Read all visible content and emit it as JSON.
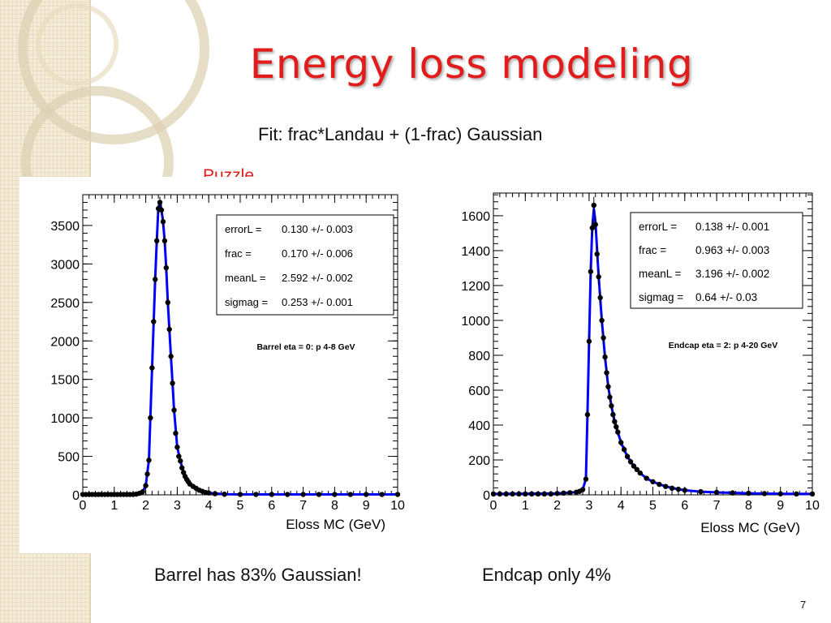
{
  "slide": {
    "title": "Energy loss modeling",
    "subtitle": "Fit: frac*Landau + (1-frac) Gaussian",
    "puzzle_label": "Puzzle",
    "caption_left": "Barrel has 83%  Gaussian!",
    "caption_right": "Endcap only 4%",
    "page_number": "7",
    "colors": {
      "title": "#e21b1b",
      "fit_line": "#0000ff",
      "points": "#000000"
    }
  },
  "chart_data": [
    {
      "type": "scatter",
      "xlabel": "Eloss MC (GeV)",
      "ylabel": "",
      "xlim": [
        0,
        10
      ],
      "ylim": [
        0,
        3900
      ],
      "xticks": [
        0,
        1,
        2,
        3,
        4,
        5,
        6,
        7,
        8,
        9,
        10
      ],
      "yticks": [
        0,
        500,
        1000,
        1500,
        2000,
        2500,
        3000,
        3500
      ],
      "grid": false,
      "legend": "none",
      "stats": [
        {
          "label": "errorL =",
          "value": "0.130 +/- 0.003"
        },
        {
          "label": "frac =",
          "value": "0.170 +/- 0.006"
        },
        {
          "label": "meanL =",
          "value": "2.592 +/- 0.002"
        },
        {
          "label": "sigmag =",
          "value": "0.253 +/- 0.001"
        }
      ],
      "annotation": "Barrel eta = 0: p 4-8 GeV",
      "series": [
        {
          "kind": "points",
          "x": [
            0.0,
            0.1,
            0.2,
            0.3,
            0.4,
            0.5,
            0.6,
            0.7,
            0.8,
            0.9,
            1.0,
            1.1,
            1.2,
            1.3,
            1.4,
            1.5,
            1.6,
            1.7,
            1.8,
            1.9,
            2.0,
            2.05,
            2.1,
            2.15,
            2.2,
            2.25,
            2.3,
            2.35,
            2.4,
            2.45,
            2.5,
            2.55,
            2.6,
            2.65,
            2.7,
            2.75,
            2.8,
            2.85,
            2.9,
            2.95,
            3.0,
            3.05,
            3.1,
            3.15,
            3.2,
            3.25,
            3.3,
            3.35,
            3.4,
            3.5,
            3.6,
            3.7,
            3.8,
            3.9,
            4.0,
            4.2,
            4.5,
            5.0,
            5.5,
            6.0,
            6.5,
            7.0,
            7.5,
            8.0,
            8.5,
            9.0,
            9.5,
            10.0
          ],
          "y": [
            5,
            5,
            5,
            5,
            5,
            5,
            5,
            5,
            5,
            5,
            5,
            5,
            5,
            5,
            5,
            5,
            5,
            10,
            20,
            40,
            120,
            270,
            450,
            1000,
            1650,
            2250,
            2800,
            3300,
            3720,
            3800,
            3700,
            3550,
            3300,
            2950,
            2500,
            2150,
            1800,
            1450,
            1100,
            800,
            620,
            500,
            440,
            350,
            290,
            240,
            200,
            170,
            140,
            110,
            85,
            60,
            45,
            30,
            25,
            15,
            8,
            5,
            5,
            5,
            5,
            5,
            5,
            5,
            5,
            5,
            5,
            5
          ]
        },
        {
          "kind": "fit",
          "x": [
            0.0,
            1.0,
            1.7,
            1.9,
            2.0,
            2.1,
            2.2,
            2.3,
            2.35,
            2.4,
            2.45,
            2.5,
            2.55,
            2.6,
            2.65,
            2.7,
            2.75,
            2.8,
            2.85,
            2.9,
            3.0,
            3.1,
            3.2,
            3.3,
            3.4,
            3.6,
            3.8,
            4.0,
            4.5,
            5.0,
            6.0,
            10.0
          ],
          "y": [
            5,
            5,
            10,
            40,
            120,
            450,
            1650,
            2800,
            3300,
            3720,
            3800,
            3700,
            3550,
            3300,
            2950,
            2500,
            2150,
            1800,
            1450,
            1100,
            620,
            440,
            290,
            200,
            140,
            85,
            45,
            25,
            8,
            5,
            5,
            5
          ]
        }
      ]
    },
    {
      "type": "scatter",
      "xlabel": "Eloss MC (GeV)",
      "ylabel": "",
      "xlim": [
        0,
        10
      ],
      "ylim": [
        0,
        1730
      ],
      "xticks": [
        0,
        1,
        2,
        3,
        4,
        5,
        6,
        7,
        8,
        9,
        10
      ],
      "yticks": [
        0,
        200,
        400,
        600,
        800,
        1000,
        1200,
        1400,
        1600
      ],
      "grid": false,
      "legend": "none",
      "stats": [
        {
          "label": "errorL =",
          "value": "0.138 +/- 0.001"
        },
        {
          "label": "frac =",
          "value": "0.963 +/- 0.003"
        },
        {
          "label": "meanL =",
          "value": "3.196 +/- 0.002"
        },
        {
          "label": "sigmag =",
          "value": "0.64 +/- 0.03"
        }
      ],
      "annotation": "Endcap eta = 2: p 4-20 GeV",
      "series": [
        {
          "kind": "points",
          "x": [
            0.0,
            0.2,
            0.4,
            0.6,
            0.8,
            1.0,
            1.2,
            1.4,
            1.6,
            1.8,
            2.0,
            2.2,
            2.4,
            2.6,
            2.7,
            2.8,
            2.9,
            2.95,
            3.0,
            3.05,
            3.1,
            3.15,
            3.2,
            3.25,
            3.3,
            3.35,
            3.4,
            3.45,
            3.5,
            3.55,
            3.6,
            3.65,
            3.7,
            3.75,
            3.8,
            3.85,
            3.9,
            4.0,
            4.1,
            4.2,
            4.3,
            4.4,
            4.5,
            4.6,
            4.8,
            5.0,
            5.2,
            5.4,
            5.6,
            5.8,
            6.0,
            6.5,
            7.0,
            7.5,
            8.0,
            8.5,
            9.0,
            9.5,
            10.0
          ],
          "y": [
            5,
            5,
            5,
            5,
            5,
            5,
            5,
            5,
            5,
            5,
            8,
            10,
            12,
            15,
            20,
            30,
            90,
            460,
            880,
            1280,
            1530,
            1660,
            1550,
            1380,
            1250,
            1130,
            1000,
            900,
            790,
            700,
            620,
            560,
            510,
            460,
            420,
            390,
            360,
            300,
            260,
            220,
            190,
            165,
            145,
            125,
            95,
            75,
            60,
            48,
            38,
            32,
            26,
            18,
            14,
            11,
            9,
            7,
            6,
            5,
            5
          ]
        },
        {
          "kind": "fit",
          "x": [
            0.0,
            2.0,
            2.6,
            2.8,
            2.9,
            2.95,
            3.0,
            3.05,
            3.1,
            3.15,
            3.2,
            3.3,
            3.4,
            3.5,
            3.6,
            3.7,
            3.8,
            3.9,
            4.0,
            4.2,
            4.4,
            4.6,
            4.8,
            5.0,
            5.4,
            5.8,
            6.0,
            6.5,
            7.0,
            8.0,
            9.0,
            10.0
          ],
          "y": [
            5,
            8,
            15,
            30,
            90,
            460,
            880,
            1280,
            1530,
            1640,
            1560,
            1250,
            1000,
            790,
            620,
            510,
            420,
            360,
            300,
            220,
            165,
            125,
            95,
            75,
            48,
            32,
            26,
            18,
            14,
            9,
            6,
            5
          ]
        }
      ]
    }
  ]
}
